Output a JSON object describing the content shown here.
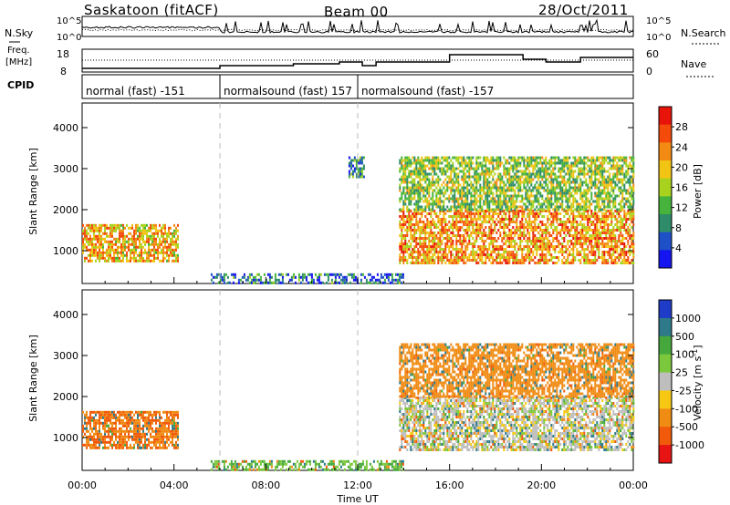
{
  "header": {
    "station": "Saskatoon (fitACF)",
    "beam": "Beam 00",
    "date": "28/Oct/2011"
  },
  "status_panels": {
    "noise": {
      "left_label": "N.Sky",
      "right_label": "N.Search",
      "left_ticks": [
        "10^5",
        "10^0"
      ],
      "right_ticks": [
        "10^5",
        "10^0"
      ]
    },
    "freq": {
      "left_label_1": "Freq.",
      "left_label_2": "[MHz]",
      "right_label": "Nave",
      "left_ticks": [
        "18",
        "8"
      ],
      "right_ticks": [
        "60",
        "0"
      ]
    },
    "cpid": {
      "label": "CPID",
      "segments": [
        {
          "label": "normal (fast) -151",
          "start_hour": 0
        },
        {
          "label": "normalsound (fast) 157",
          "start_hour": 6
        },
        {
          "label": "normalsound (fast) -157",
          "start_hour": 12
        }
      ]
    }
  },
  "chart_data": [
    {
      "type": "heatmap",
      "name": "power",
      "xlabel": "",
      "ylabel": "Slant Range [km]",
      "xlim": [
        0,
        24
      ],
      "ylim": [
        200,
        4600
      ],
      "yticks": [
        1000,
        2000,
        3000,
        4000
      ],
      "colorbar": {
        "label": "Power [dB]",
        "ticks": [
          "28",
          "24",
          "20",
          "16",
          "12",
          "8",
          "4"
        ],
        "colors": [
          "#e8140a",
          "#f44a0a",
          "#f38a14",
          "#f2c414",
          "#a8d21e",
          "#46b43c",
          "#2e8c6a",
          "#1e50c8",
          "#1414f0"
        ]
      },
      "echo_regions": [
        {
          "x": [
            0.0,
            4.2
          ],
          "y": [
            780,
            1650
          ],
          "level_db": 20
        },
        {
          "x": [
            5.6,
            14.0
          ],
          "y": [
            200,
            450
          ],
          "level_db": 6
        },
        {
          "x": [
            13.8,
            24.0
          ],
          "y": [
            700,
            2000
          ],
          "level_db": 22
        },
        {
          "x": [
            13.8,
            24.0
          ],
          "y": [
            2000,
            3300
          ],
          "level_db": 14
        },
        {
          "x": [
            11.6,
            12.3
          ],
          "y": [
            2800,
            3300
          ],
          "level_db": 8
        }
      ],
      "boundary_hours": [
        6,
        12
      ]
    },
    {
      "type": "heatmap",
      "name": "velocity",
      "xlabel": "Time UT",
      "ylabel": "Slant Range [km]",
      "xlim": [
        0,
        24
      ],
      "ylim": [
        200,
        4600
      ],
      "yticks": [
        1000,
        2000,
        3000,
        4000
      ],
      "xticks": [
        "00:00",
        "04:00",
        "08:00",
        "12:00",
        "16:00",
        "20:00",
        "00:00"
      ],
      "colorbar": {
        "label": "Velocity [m s^-1]",
        "ticks": [
          "1000",
          "500",
          "100",
          "25",
          "-25",
          "-100",
          "-500",
          "-1000"
        ],
        "colors": [
          "#1e3cc8",
          "#2e7a8a",
          "#46a83c",
          "#7cc83c",
          "#bebebe",
          "#f6c814",
          "#f08c14",
          "#f05a0a",
          "#e81414"
        ]
      },
      "echo_regions": [
        {
          "x": [
            0.0,
            4.2
          ],
          "y": [
            780,
            1650
          ],
          "level_ms": -300
        },
        {
          "x": [
            5.6,
            14.0
          ],
          "y": [
            200,
            450
          ],
          "level_ms": 60
        },
        {
          "x": [
            13.8,
            24.0
          ],
          "y": [
            700,
            2000
          ],
          "level_ms": 0
        },
        {
          "x": [
            13.8,
            24.0
          ],
          "y": [
            2000,
            3300
          ],
          "level_ms": -100
        }
      ],
      "boundary_hours": [
        6,
        12
      ]
    }
  ],
  "ylabel_units": "[km]",
  "ylabel_main": "Slant Range",
  "colorbar_power_label": "Power [dB]",
  "colorbar_velocity_label": "Velocity",
  "colorbar_velocity_unit": "[m s",
  "colorbar_velocity_sup": "-1",
  "colorbar_velocity_close": "]",
  "xlabel": "Time UT"
}
